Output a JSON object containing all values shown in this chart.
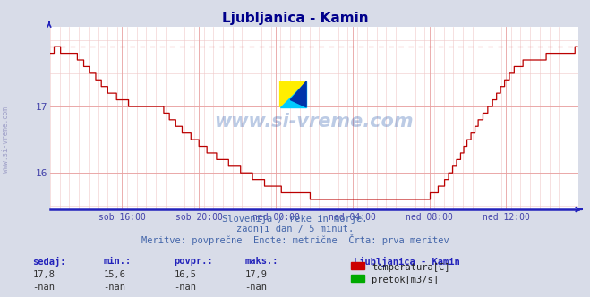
{
  "title": "Ljubljanica - Kamin",
  "title_color": "#00008B",
  "bg_color": "#D8DCE8",
  "plot_bg_color": "#FFFFFF",
  "line_color": "#BB0000",
  "grid_color_major": "#E8A0A0",
  "grid_color_minor": "#F0C8C8",
  "axis_color": "#2222BB",
  "tick_color": "#4444AA",
  "ylabel_ticks": [
    16,
    17
  ],
  "ytick_labels": [
    "16",
    "17"
  ],
  "ymin": 15.45,
  "ymax": 18.2,
  "xtick_labels": [
    "sob 16:00",
    "sob 20:00",
    "ned 00:00",
    "ned 04:00",
    "ned 08:00",
    "ned 12:00"
  ],
  "xtick_positions": [
    90,
    186,
    282,
    378,
    474,
    570
  ],
  "total_points": 660,
  "subtitle1": "Slovenija / reke in morje.",
  "subtitle2": "zadnji dan / 5 minut.",
  "subtitle3": "Meritve: povprečne  Enote: metrične  Črta: prva meritev",
  "footer_color": "#4466AA",
  "watermark": "www.si-vreme.com",
  "legend_title": "Ljubljanica - Kamin",
  "legend_items": [
    {
      "label": "temperatura[C]",
      "color": "#CC0000"
    },
    {
      "label": "pretok[m3/s]",
      "color": "#00AA00"
    }
  ],
  "stats_headers": [
    "sedaj:",
    "min.:",
    "povpr.:",
    "maks.:"
  ],
  "stats_temp": [
    "17,8",
    "15,6",
    "16,5",
    "17,9"
  ],
  "stats_pretok": [
    "-nan",
    "-nan",
    "-nan",
    "-nan"
  ],
  "max_line_value": 17.9,
  "dashed_line_color": "#CC0000",
  "left_label": "www.si-vreme.com"
}
